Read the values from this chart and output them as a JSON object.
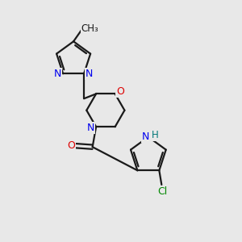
{
  "bg_color": "#e8e8e8",
  "bond_color": "#1a1a1a",
  "N_color": "#0000ee",
  "O_color": "#dd0000",
  "Cl_color": "#008800",
  "H_color": "#007777",
  "line_width": 1.6,
  "fig_size": [
    3.0,
    3.0
  ],
  "dpi": 100,
  "xlim": [
    0,
    10
  ],
  "ylim": [
    0,
    10
  ]
}
